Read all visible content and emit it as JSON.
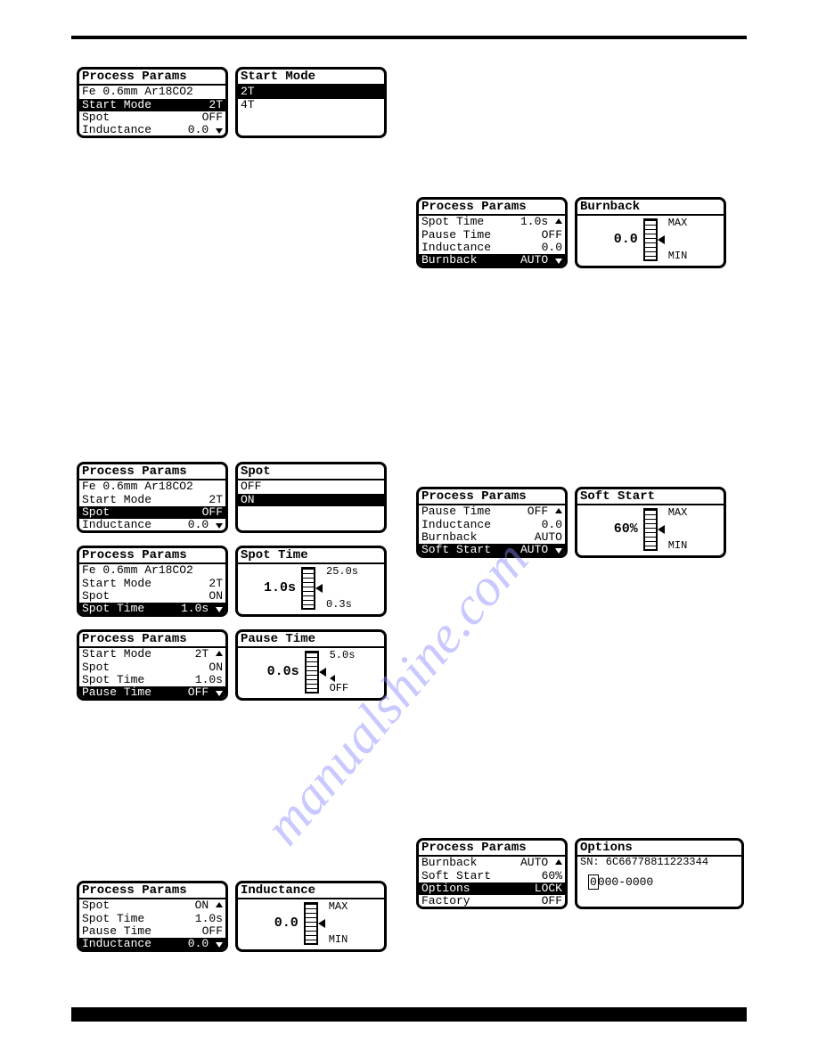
{
  "watermark_text": "manualshine.com",
  "watermark_color": "#8a8aff",
  "screens": {
    "pp1": {
      "title": "Process Params",
      "subtitle": "Fe 0.6mm Ar18CO2",
      "rows": [
        {
          "label": "Start Mode",
          "value": "2T",
          "selected": true
        },
        {
          "label": "Spot",
          "value": "OFF"
        },
        {
          "label": "Inductance",
          "value": "0.0",
          "down": true
        }
      ]
    },
    "startmode": {
      "title": "Start Mode",
      "options": [
        {
          "label": "2T",
          "selected": true
        },
        {
          "label": "4T"
        }
      ]
    },
    "pp_burnback": {
      "title": "Process Params",
      "rows": [
        {
          "label": " Spot Time",
          "value": "1.0s",
          "up": true
        },
        {
          "label": " Pause Time",
          "value": "OFF"
        },
        {
          "label": "Inductance",
          "value": "0.0"
        },
        {
          "label": "Burnback",
          "value": "AUTO",
          "selected": true,
          "down": true
        }
      ]
    },
    "burnback": {
      "title": "Burnback",
      "value": "0.0",
      "max_label": "MAX",
      "min_label": "MIN"
    },
    "pp_spot": {
      "title": "Process Params",
      "subtitle": "Fe 0.6mm Ar18CO2",
      "rows": [
        {
          "label": "Start Mode",
          "value": "2T"
        },
        {
          "label": "Spot",
          "value": "OFF",
          "selected": true
        },
        {
          "label": "Inductance",
          "value": "0.0",
          "down": true
        }
      ]
    },
    "spot": {
      "title": "Spot",
      "options": [
        {
          "label": "OFF"
        },
        {
          "label": "ON",
          "selected": true
        }
      ]
    },
    "pp_softstart": {
      "title": "Process Params",
      "rows": [
        {
          "label": " Pause Time",
          "value": "OFF",
          "up": true
        },
        {
          "label": "Inductance",
          "value": "0.0"
        },
        {
          "label": "Burnback",
          "value": "AUTO"
        },
        {
          "label": "Soft Start",
          "value": "AUTO",
          "selected": true,
          "down": true
        }
      ]
    },
    "softstart": {
      "title": "Soft Start",
      "value": "60%",
      "max_label": "MAX",
      "min_label": "MIN"
    },
    "pp_spottime": {
      "title": "Process Params",
      "subtitle": "Fe 0.6mm Ar18CO2",
      "rows": [
        {
          "label": "Start Mode",
          "value": "2T"
        },
        {
          "label": "Spot",
          "value": "ON"
        },
        {
          "label": " Spot Time",
          "value": "1.0s",
          "selected": true,
          "down": true
        }
      ]
    },
    "spottime": {
      "title": "Spot Time",
      "value": "1.0s",
      "max_label": "25.0s",
      "min_label": "0.3s"
    },
    "pp_pausetime": {
      "title": "Process Params",
      "rows": [
        {
          "label": "Start Mode",
          "value": "2T",
          "up": true
        },
        {
          "label": "Spot",
          "value": "ON"
        },
        {
          "label": " Spot Time",
          "value": "1.0s"
        },
        {
          "label": " Pause Time",
          "value": "OFF",
          "selected": true,
          "down": true
        }
      ]
    },
    "pausetime": {
      "title": "Pause Time",
      "value": "0.0s",
      "max_label": "5.0s",
      "min_label": "OFF"
    },
    "pp_options": {
      "title": "Process Params",
      "rows": [
        {
          "label": "Burnback",
          "value": "AUTO",
          "up": true
        },
        {
          "label": "Soft Start",
          "value": "60%"
        },
        {
          "label": "Options",
          "value": "LOCK",
          "selected": true
        },
        {
          "label": "Factory",
          "value": "OFF"
        }
      ]
    },
    "options": {
      "title": "Options",
      "sn_label": "SN: 6C66778811223344",
      "code": "0000-0000"
    },
    "pp_inductance": {
      "title": "Process Params",
      "rows": [
        {
          "label": "Spot",
          "value": "ON",
          "up": true
        },
        {
          "label": " Spot Time",
          "value": "1.0s"
        },
        {
          "label": " Pause Time",
          "value": "OFF"
        },
        {
          "label": "Inductance",
          "value": "0.0",
          "selected": true,
          "down": true
        }
      ]
    },
    "inductance": {
      "title": "Inductance",
      "value": "0.0",
      "max_label": "MAX",
      "min_label": "MIN"
    }
  }
}
